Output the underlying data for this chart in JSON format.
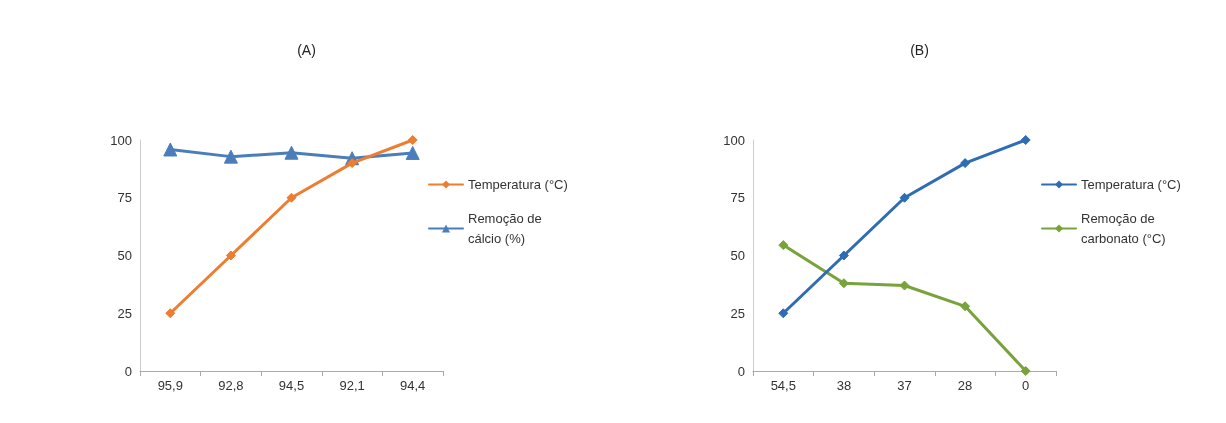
{
  "chart_data": [
    {
      "type": "line",
      "title": "(A)",
      "categories": [
        "95,9",
        "92,8",
        "94,5",
        "92,1",
        "94,4"
      ],
      "ylim": [
        0,
        100
      ],
      "yticks": [
        0,
        25,
        50,
        75,
        100
      ],
      "grid": false,
      "legend": "right",
      "series": [
        {
          "name": "Temperatura (°C)",
          "color": "#ed7d31",
          "marker": "diamond",
          "values": [
            25,
            50,
            75,
            90,
            100
          ]
        },
        {
          "name": "Remoção de cálcio (%)",
          "color": "#4a7ebb",
          "marker": "triangle",
          "values": [
            95.9,
            92.8,
            94.5,
            92.1,
            94.4
          ]
        }
      ]
    },
    {
      "type": "line",
      "title": "(B)",
      "categories": [
        "54,5",
        "38",
        "37",
        "28",
        "0"
      ],
      "ylim": [
        0,
        100
      ],
      "yticks": [
        0,
        25,
        50,
        75,
        100
      ],
      "grid": false,
      "legend": "right",
      "series": [
        {
          "name": "Temperatura (°C)",
          "color": "#2e6db4",
          "marker": "diamond",
          "values": [
            25,
            50,
            75,
            90,
            100
          ]
        },
        {
          "name": "Remoção de carbonato (°C)",
          "color": "#77a33a",
          "marker": "diamond",
          "values": [
            54.5,
            38,
            37,
            28,
            0
          ]
        }
      ]
    }
  ]
}
